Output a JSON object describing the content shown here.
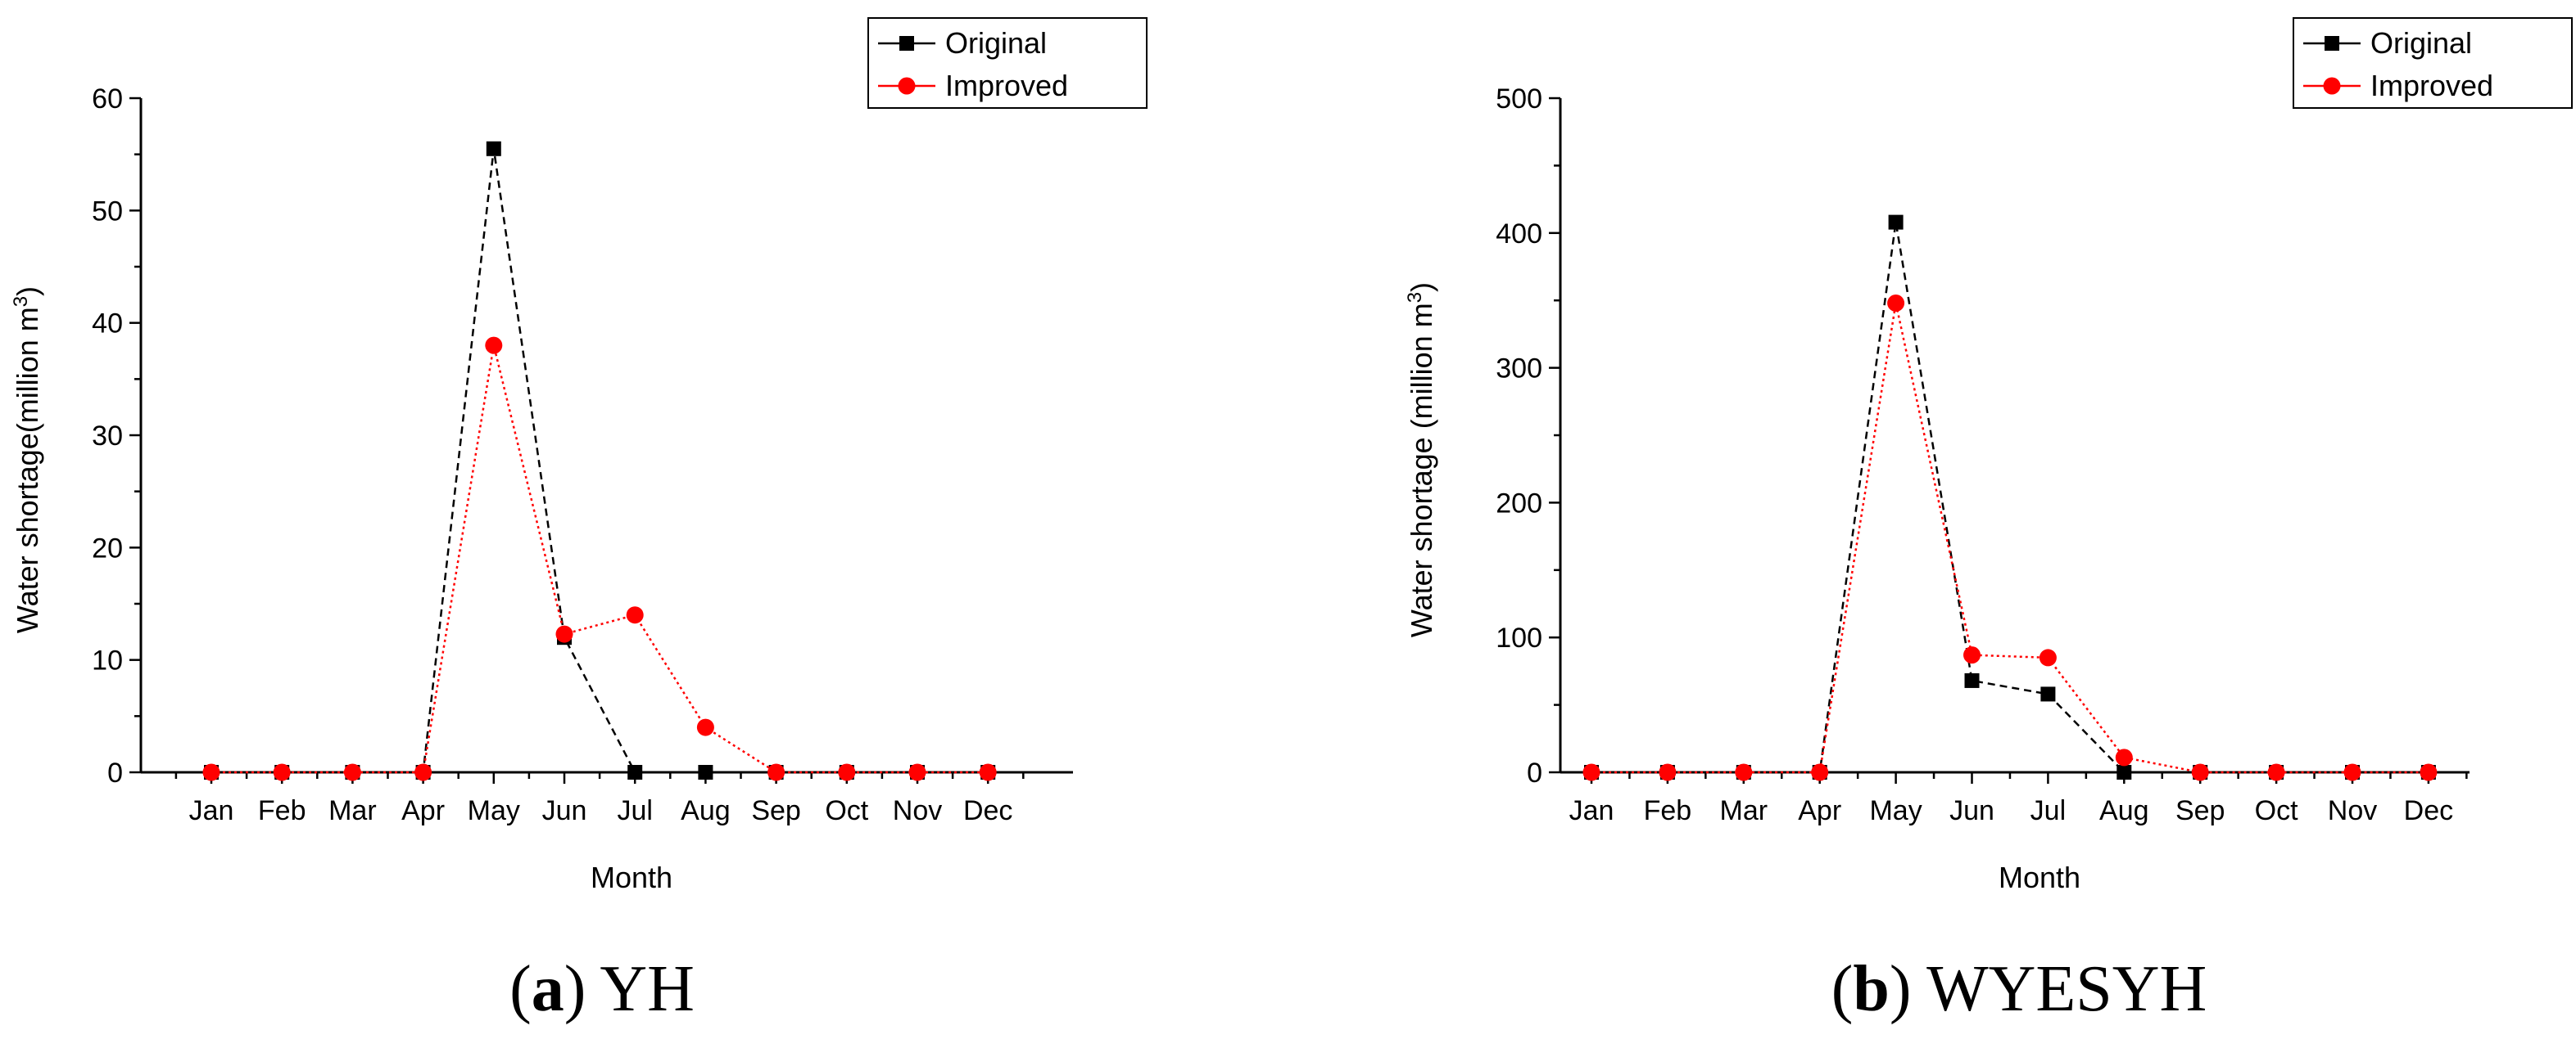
{
  "chart_data": [
    {
      "type": "line",
      "caption_letter": "a",
      "caption_name": "YH",
      "xlabel": "Month",
      "ylabel": "Water shortage(million m",
      "ylabel_sup": "3",
      "ylabel_end": ")",
      "categories": [
        "Jan",
        "Feb",
        "Mar",
        "Apr",
        "May",
        "Jun",
        "Jul",
        "Aug",
        "Sep",
        "Oct",
        "Nov",
        "Dec"
      ],
      "ylim": [
        0,
        60
      ],
      "yticks": [
        "0",
        "10",
        "20",
        "30",
        "40",
        "50",
        "60"
      ],
      "legend_position": "top-right",
      "grid": false,
      "series": [
        {
          "name": "Original",
          "color": "#000000",
          "marker": "square",
          "line": "dashed",
          "values": [
            0,
            0,
            0,
            0,
            55.5,
            12,
            0,
            0,
            0,
            0,
            0,
            0
          ]
        },
        {
          "name": "Improved",
          "color": "#ff0000",
          "marker": "circle",
          "line": "dotted",
          "values": [
            0,
            0,
            0,
            0,
            38,
            12.3,
            14,
            4,
            0,
            0,
            0,
            0
          ]
        }
      ]
    },
    {
      "type": "line",
      "caption_letter": "b",
      "caption_name": "WYESYH",
      "xlabel": "Month",
      "ylabel": "Water shortage (million m",
      "ylabel_sup": "3",
      "ylabel_end": ")",
      "categories": [
        "Jan",
        "Feb",
        "Mar",
        "Apr",
        "May",
        "Jun",
        "Jul",
        "Aug",
        "Sep",
        "Oct",
        "Nov",
        "Dec"
      ],
      "ylim": [
        0,
        500
      ],
      "yticks": [
        "0",
        "100",
        "200",
        "300",
        "400",
        "500"
      ],
      "legend_position": "top-right",
      "grid": false,
      "series": [
        {
          "name": "Original",
          "color": "#000000",
          "marker": "square",
          "line": "dashed",
          "values": [
            0,
            0,
            0,
            0,
            408,
            68,
            58,
            0,
            0,
            0,
            0,
            0
          ]
        },
        {
          "name": "Improved",
          "color": "#ff0000",
          "marker": "circle",
          "line": "dotted",
          "values": [
            0,
            0,
            0,
            0,
            348,
            87,
            85,
            11,
            0,
            0,
            0,
            0
          ]
        }
      ]
    }
  ]
}
